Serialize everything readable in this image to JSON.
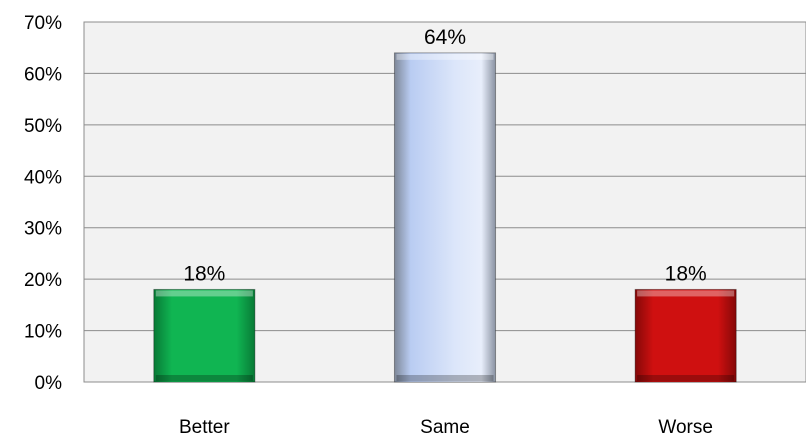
{
  "chart_data": {
    "type": "bar",
    "title": "",
    "xlabel": "",
    "ylabel": "",
    "categories": [
      "Better",
      "Same",
      "Worse"
    ],
    "values": [
      18,
      64,
      18
    ],
    "data_labels": [
      "18%",
      "64%",
      "18%"
    ],
    "bar_colors": [
      "#0FB650",
      "#C4D6F7",
      "#CC1010"
    ],
    "ylim": [
      0,
      70
    ],
    "yticks": [
      0,
      10,
      20,
      30,
      40,
      50,
      60,
      70
    ],
    "ytick_labels": [
      "0%",
      "10%",
      "20%",
      "30%",
      "40%",
      "50%",
      "60%",
      "70%"
    ],
    "grid": true,
    "legend": false,
    "plot_background": "#F2F2F2"
  }
}
